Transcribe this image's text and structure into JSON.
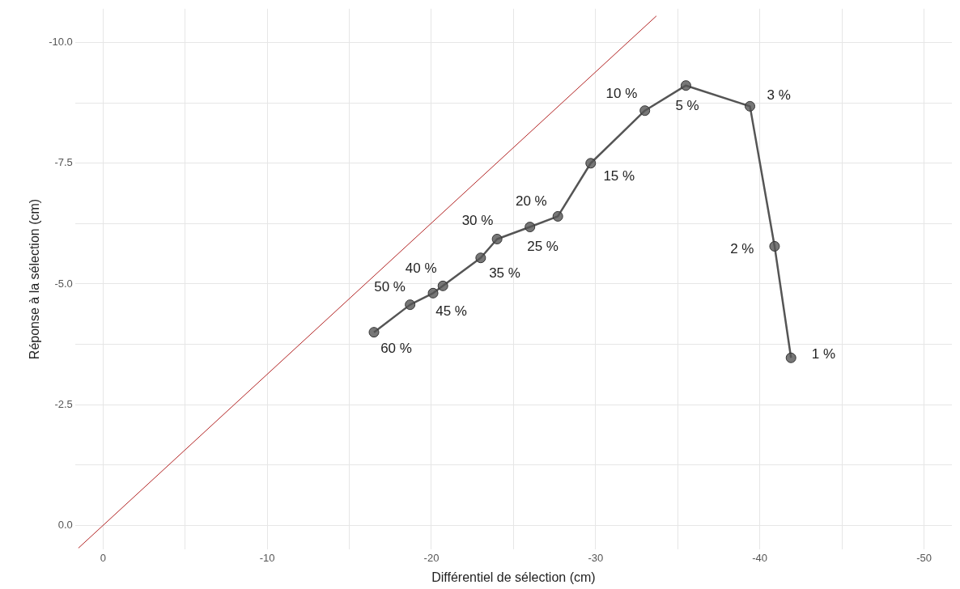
{
  "chart_data": {
    "type": "line",
    "xlabel": "Différentiel de sélection (cm)",
    "ylabel": "Réponse à la sélection (cm)",
    "xlim": [
      1.7,
      -51.7
    ],
    "ylim": [
      0.5,
      -10.7
    ],
    "xticks": [
      0,
      {
        "value": -5,
        "label": null
      },
      -10,
      {
        "value": -15,
        "label": null
      },
      -20,
      {
        "value": -25,
        "label": null
      },
      -30,
      {
        "value": -35,
        "label": null
      },
      -40,
      {
        "value": -45,
        "label": null
      },
      -50
    ],
    "yticks": [
      {
        "value": 0,
        "label": "0.0"
      },
      {
        "value": -1.25,
        "label": null
      },
      {
        "value": -2.5,
        "label": "-2.5"
      },
      {
        "value": -3.75,
        "label": null
      },
      {
        "value": -5,
        "label": "-5.0"
      },
      {
        "value": -6.25,
        "label": null
      },
      {
        "value": -7.5,
        "label": "-7.5"
      },
      {
        "value": -8.75,
        "label": null
      },
      {
        "value": -10,
        "label": "-10.0"
      }
    ],
    "grid": true,
    "legend": false,
    "series": [
      {
        "color": "#b22222",
        "marker": "none",
        "x": [
          1.5,
          -33.7
        ],
        "values": [
          0.47,
          -10.55
        ]
      },
      {
        "color": "#555555",
        "marker": "circle",
        "x": [
          -16.5,
          -18.7,
          -20.1,
          -20.7,
          -23.0,
          -24.0,
          -26.0,
          -27.7,
          -29.7,
          -33.0,
          -35.5,
          -39.4,
          -40.9,
          -41.9
        ],
        "values": [
          -4.0,
          -4.57,
          -4.81,
          -4.96,
          -5.54,
          -5.93,
          -6.18,
          -6.4,
          -7.5,
          -8.59,
          -9.11,
          -8.68,
          -5.78,
          -3.47
        ]
      }
    ],
    "annotations": [
      {
        "text": "60 %",
        "x": -16.5,
        "y": -4.0
      },
      {
        "text": "50 %",
        "x": -18.7,
        "y": -4.57
      },
      {
        "text": "45 %",
        "x": -20.1,
        "y": -4.81
      },
      {
        "text": "40 %",
        "x": -20.7,
        "y": -4.96
      },
      {
        "text": "35 %",
        "x": -23.0,
        "y": -5.54
      },
      {
        "text": "30 %",
        "x": -24.0,
        "y": -5.93
      },
      {
        "text": "25 %",
        "x": -26.0,
        "y": -6.18
      },
      {
        "text": "20 %",
        "x": -27.7,
        "y": -6.4
      },
      {
        "text": "15 %",
        "x": -29.7,
        "y": -7.5
      },
      {
        "text": "10 %",
        "x": -33.0,
        "y": -8.59
      },
      {
        "text": "5 %",
        "x": -35.5,
        "y": -9.11
      },
      {
        "text": "3 %",
        "x": -39.4,
        "y": -8.68
      },
      {
        "text": "2 %",
        "x": -40.9,
        "y": -5.78
      },
      {
        "text": "1 %",
        "x": -41.9,
        "y": -3.47
      }
    ]
  }
}
